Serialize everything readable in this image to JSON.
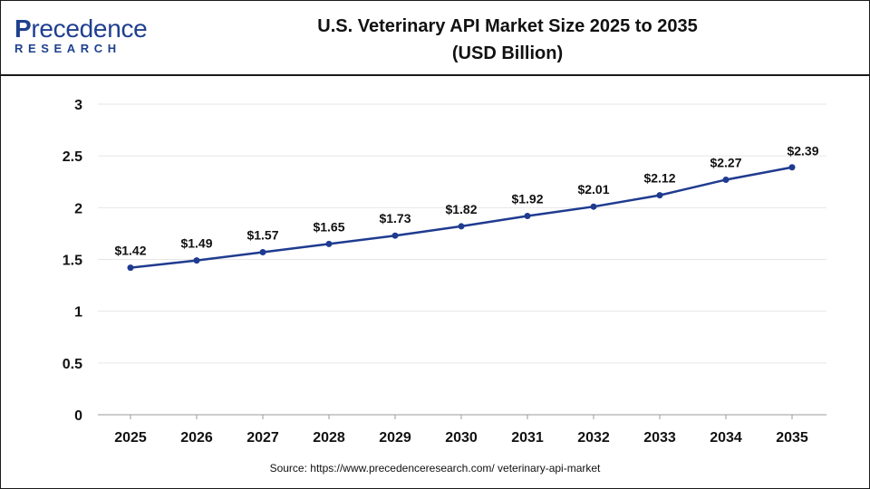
{
  "logo": {
    "main_first": "P",
    "main_rest": "recedence",
    "sub": "RESEARCH"
  },
  "header": {
    "title_line1": "U.S. Veterinary API Market Size 2025 to 2035",
    "title_line2": "(USD Billion)"
  },
  "source": "Source: https://www.precedenceresearch.com/ veterinary-api-market",
  "colors": {
    "line": "#1f3b8f",
    "grid": "#e6e6e6",
    "text": "#111111"
  },
  "chart_data": {
    "type": "line",
    "title": "U.S. Veterinary API Market Size 2025 to 2035 (USD Billion)",
    "xlabel": "",
    "ylabel": "",
    "categories": [
      "2025",
      "2026",
      "2027",
      "2028",
      "2029",
      "2030",
      "2031",
      "2032",
      "2033",
      "2034",
      "2035"
    ],
    "series": [
      {
        "values": [
          1.42,
          1.49,
          1.57,
          1.65,
          1.73,
          1.82,
          1.92,
          2.01,
          2.12,
          2.27,
          2.39
        ],
        "labels": [
          "$1.42",
          "$1.49",
          "$1.57",
          "$1.65",
          "$1.73",
          "$1.82",
          "$1.92",
          "$2.01",
          "$2.12",
          "$2.27",
          "$2.39"
        ]
      }
    ],
    "yticks": [
      "0",
      "0.5",
      "1",
      "1.5",
      "2",
      "2.5",
      "3"
    ],
    "ylim": [
      0,
      3
    ],
    "grid": true,
    "legend": "none"
  }
}
